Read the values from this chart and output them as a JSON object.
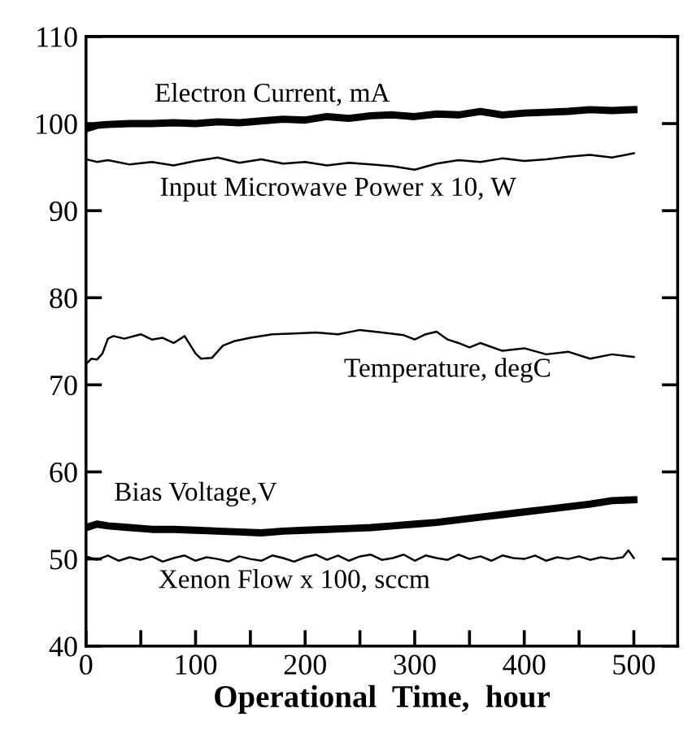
{
  "chart_data": {
    "type": "line",
    "xlabel": "Operational  Time,  hour",
    "xlim": [
      0,
      540
    ],
    "ylim": [
      40,
      110
    ],
    "xticks": [
      0,
      {
        "value": 50,
        "label": null
      },
      100,
      {
        "value": 150,
        "label": null
      },
      200,
      {
        "value": 250,
        "label": null
      },
      300,
      {
        "value": 350,
        "label": null
      },
      400,
      {
        "value": 450,
        "label": null
      },
      500
    ],
    "yticks": [
      40,
      50,
      60,
      70,
      80,
      90,
      100,
      110
    ],
    "grid": false,
    "legend": false,
    "marker": "none",
    "line_style": "solid",
    "series": [
      {
        "name": "Electron Current, mA",
        "color": "#000000",
        "x": [
          0,
          10,
          20,
          40,
          60,
          80,
          100,
          120,
          140,
          160,
          180,
          200,
          220,
          240,
          260,
          280,
          300,
          320,
          340,
          360,
          380,
          400,
          420,
          440,
          460,
          480,
          500
        ],
        "values": [
          99.4,
          99.8,
          99.9,
          100.0,
          100.0,
          100.1,
          100.0,
          100.2,
          100.1,
          100.3,
          100.5,
          100.4,
          100.8,
          100.6,
          100.9,
          101.0,
          100.8,
          101.1,
          101.0,
          101.4,
          101.0,
          101.2,
          101.3,
          101.4,
          101.6,
          101.5,
          101.6
        ]
      },
      {
        "name": "Input Microwave Power x 10, W",
        "color": "#000000",
        "x": [
          0,
          10,
          20,
          40,
          60,
          80,
          100,
          120,
          140,
          160,
          180,
          200,
          220,
          240,
          260,
          280,
          300,
          320,
          340,
          360,
          380,
          400,
          420,
          440,
          460,
          480,
          500
        ],
        "values": [
          95.9,
          95.6,
          95.8,
          95.3,
          95.6,
          95.2,
          95.7,
          96.1,
          95.5,
          95.9,
          95.4,
          95.6,
          95.2,
          95.5,
          95.3,
          95.1,
          94.7,
          95.4,
          95.8,
          95.6,
          96.0,
          95.7,
          95.9,
          96.2,
          96.4,
          96.1,
          96.6
        ]
      },
      {
        "name": "Temperature, degC",
        "color": "#000000",
        "x": [
          0,
          5,
          10,
          15,
          20,
          25,
          35,
          50,
          60,
          70,
          80,
          90,
          100,
          105,
          115,
          125,
          135,
          150,
          170,
          190,
          210,
          230,
          250,
          270,
          290,
          300,
          310,
          320,
          330,
          340,
          350,
          360,
          380,
          400,
          420,
          440,
          460,
          480,
          500
        ],
        "values": [
          72.4,
          73.0,
          72.9,
          73.6,
          75.3,
          75.6,
          75.3,
          75.8,
          75.2,
          75.4,
          74.8,
          75.6,
          73.6,
          73.0,
          73.1,
          74.5,
          75.0,
          75.4,
          75.8,
          75.9,
          76.0,
          75.8,
          76.3,
          76.0,
          75.7,
          75.2,
          75.8,
          76.1,
          75.2,
          74.8,
          74.3,
          74.8,
          73.9,
          74.2,
          73.5,
          73.8,
          73.0,
          73.5,
          73.2
        ]
      },
      {
        "name": "Bias Voltage,V",
        "color": "#000000",
        "x": [
          0,
          10,
          20,
          40,
          60,
          80,
          100,
          120,
          140,
          160,
          180,
          200,
          220,
          240,
          260,
          280,
          300,
          320,
          340,
          360,
          380,
          400,
          420,
          440,
          460,
          480,
          500
        ],
        "values": [
          53.6,
          54.0,
          53.8,
          53.6,
          53.4,
          53.4,
          53.3,
          53.2,
          53.1,
          53.0,
          53.2,
          53.3,
          53.4,
          53.5,
          53.6,
          53.8,
          54.0,
          54.2,
          54.5,
          54.8,
          55.1,
          55.4,
          55.7,
          56.0,
          56.3,
          56.7,
          56.8
        ]
      },
      {
        "name": "Xenon Flow x 100, sccm",
        "color": "#000000",
        "x": [
          0,
          10,
          20,
          30,
          40,
          50,
          60,
          70,
          80,
          90,
          100,
          110,
          120,
          130,
          140,
          150,
          160,
          170,
          180,
          190,
          200,
          210,
          220,
          230,
          240,
          250,
          260,
          270,
          280,
          290,
          300,
          310,
          320,
          330,
          340,
          350,
          360,
          370,
          380,
          390,
          400,
          410,
          420,
          430,
          440,
          450,
          460,
          470,
          480,
          490,
          495,
          500
        ],
        "values": [
          50.3,
          49.9,
          50.4,
          49.8,
          50.2,
          49.9,
          50.3,
          49.7,
          50.1,
          50.4,
          49.8,
          50.2,
          50.0,
          49.7,
          50.3,
          50.0,
          49.8,
          50.4,
          50.1,
          49.7,
          50.2,
          50.5,
          49.9,
          50.4,
          49.8,
          50.3,
          50.5,
          49.9,
          50.1,
          50.5,
          49.8,
          50.4,
          50.1,
          49.9,
          50.5,
          50.0,
          50.3,
          49.8,
          50.4,
          50.1,
          50.0,
          50.4,
          49.8,
          50.2,
          50.0,
          50.3,
          49.9,
          50.2,
          50.0,
          50.2,
          51.0,
          50.1
        ]
      }
    ]
  }
}
